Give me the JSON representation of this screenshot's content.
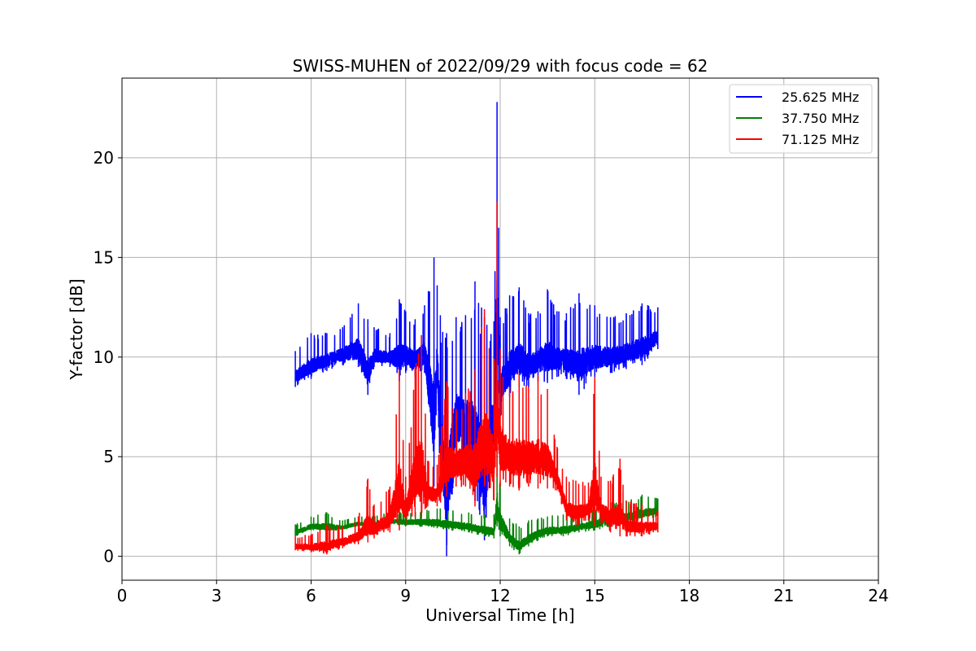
{
  "chart_data": {
    "type": "line",
    "title": "SWISS-MUHEN of 2022/09/29 with focus code = 62",
    "xlabel": "Universal Time [h]",
    "ylabel": "Y-factor [dB]",
    "xlim": [
      0,
      24
    ],
    "ylim": [
      -1.2,
      24
    ],
    "xticks": [
      0,
      3,
      6,
      9,
      12,
      15,
      18,
      21,
      24
    ],
    "xtick_labels": [
      "0",
      "3",
      "6",
      "9",
      "12",
      "15",
      "18",
      "21",
      "24"
    ],
    "yticks": [
      0,
      5,
      10,
      15,
      20
    ],
    "ytick_labels": [
      "0",
      "5",
      "10",
      "15",
      "20"
    ],
    "grid": true,
    "legend_position": "top-right",
    "series": [
      {
        "name": "25.625 MHz",
        "color": "#0000ff",
        "x": [
          5.5,
          6.0,
          6.5,
          7.0,
          7.5,
          7.8,
          8.0,
          8.5,
          8.8,
          9.0,
          9.3,
          9.6,
          9.9,
          10.0,
          10.1,
          10.3,
          10.6,
          10.9,
          11.2,
          11.5,
          11.8,
          11.9,
          12.0,
          12.3,
          12.6,
          12.9,
          13.2,
          13.5,
          13.8,
          14.1,
          14.5,
          15.0,
          15.5,
          16.0,
          16.5,
          17.0
        ],
        "y_low": [
          8.5,
          8.9,
          9.3,
          9.6,
          9.5,
          8.1,
          9.5,
          9.5,
          8.8,
          9.2,
          9.0,
          9.2,
          3.5,
          8.5,
          3.5,
          0.0,
          5.0,
          4.5,
          2.8,
          0.8,
          5.0,
          8.0,
          7.0,
          8.0,
          8.5,
          8.5,
          8.8,
          8.7,
          9.0,
          8.9,
          8.1,
          9.0,
          9.2,
          9.4,
          9.6,
          10.4
        ],
        "y_high": [
          10.3,
          11.2,
          11.2,
          11.5,
          12.7,
          11.9,
          11.5,
          11.2,
          12.9,
          12.3,
          11.9,
          12.6,
          15.0,
          13.6,
          12.1,
          11.2,
          12.0,
          12.1,
          13.8,
          12.0,
          11.8,
          22.8,
          12.0,
          13.1,
          13.5,
          12.2,
          12.3,
          13.4,
          12.3,
          12.2,
          13.2,
          12.6,
          12.0,
          12.2,
          12.7,
          12.5
        ]
      },
      {
        "name": "37.750 MHz",
        "color": "#008000",
        "x": [
          5.5,
          6.0,
          6.5,
          7.0,
          7.5,
          8.0,
          8.5,
          9.0,
          9.5,
          10.0,
          10.5,
          11.0,
          11.5,
          11.8,
          11.9,
          12.0,
          12.3,
          12.6,
          12.9,
          13.2,
          13.5,
          14.0,
          14.5,
          15.0,
          15.5,
          16.0,
          16.5,
          17.0
        ],
        "y_low": [
          1.0,
          1.3,
          1.2,
          1.3,
          1.5,
          1.4,
          1.6,
          1.5,
          1.5,
          1.4,
          1.3,
          1.2,
          1.0,
          0.9,
          1.5,
          1.0,
          0.5,
          0.1,
          0.5,
          0.8,
          1.0,
          1.0,
          1.2,
          1.3,
          1.5,
          1.6,
          1.8,
          2.0
        ],
        "y_high": [
          1.6,
          2.0,
          2.2,
          1.8,
          2.0,
          2.0,
          2.2,
          2.2,
          2.3,
          2.4,
          2.3,
          2.2,
          2.1,
          2.1,
          5.5,
          3.8,
          1.9,
          1.5,
          1.8,
          1.9,
          2.0,
          2.1,
          2.1,
          2.4,
          2.7,
          2.8,
          3.1,
          2.9
        ]
      },
      {
        "name": "71.125 MHz",
        "color": "#ff0000",
        "x": [
          5.5,
          6.0,
          6.5,
          7.0,
          7.5,
          7.8,
          8.0,
          8.5,
          8.8,
          9.0,
          9.3,
          9.5,
          9.7,
          10.0,
          10.3,
          10.6,
          10.9,
          11.2,
          11.5,
          11.8,
          11.9,
          12.0,
          12.3,
          12.6,
          12.9,
          13.2,
          13.5,
          13.8,
          14.1,
          14.4,
          14.8,
          15.0,
          15.2,
          15.5,
          15.8,
          16.0,
          16.5,
          17.0
        ],
        "y_low": [
          0.3,
          0.2,
          0.1,
          0.4,
          0.6,
          0.7,
          0.9,
          1.2,
          1.3,
          1.6,
          2.0,
          2.0,
          2.5,
          2.5,
          3.0,
          3.5,
          3.5,
          2.5,
          3.5,
          2.8,
          4.0,
          3.5,
          3.5,
          3.3,
          3.5,
          3.4,
          3.4,
          3.3,
          1.8,
          1.5,
          1.8,
          1.5,
          1.6,
          1.2,
          1.0,
          1.0,
          1.0,
          1.2
        ],
        "y_high": [
          1.0,
          1.1,
          1.6,
          1.5,
          2.0,
          3.9,
          2.6,
          3.5,
          9.4,
          4.0,
          9.5,
          11.1,
          4.8,
          4.6,
          8.8,
          7.4,
          8.2,
          9.4,
          12.4,
          9.6,
          17.8,
          10.4,
          8.5,
          9.2,
          8.5,
          9.1,
          8.4,
          5.5,
          4.0,
          3.8,
          3.7,
          9.0,
          4.0,
          3.8,
          4.9,
          2.8,
          2.6,
          2.3
        ]
      }
    ]
  }
}
